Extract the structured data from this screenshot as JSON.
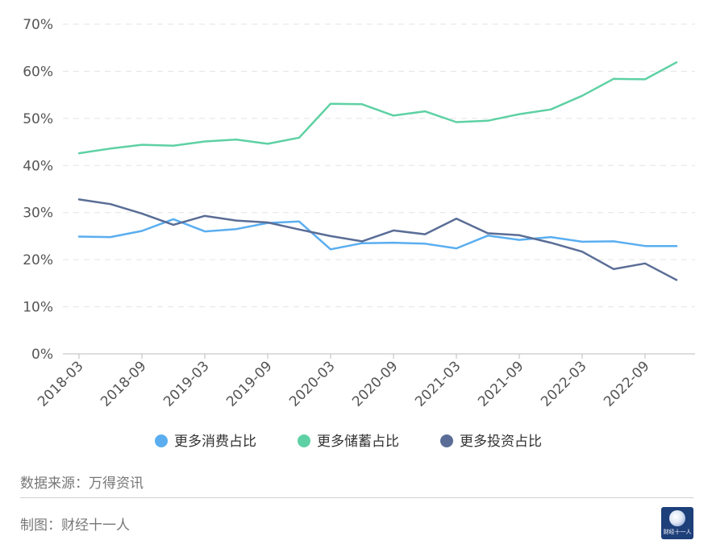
{
  "chart_data": {
    "type": "line",
    "title": "",
    "xlabel": "",
    "ylabel": "",
    "ylim": [
      0,
      70
    ],
    "y_ticks": [
      0,
      10,
      20,
      30,
      40,
      50,
      60,
      70
    ],
    "y_tick_labels": [
      "0%",
      "10%",
      "20%",
      "30%",
      "40%",
      "50%",
      "60%",
      "70%"
    ],
    "x": [
      "2018-03",
      "2018-06",
      "2018-09",
      "2018-12",
      "2019-03",
      "2019-06",
      "2019-09",
      "2019-12",
      "2020-03",
      "2020-06",
      "2020-09",
      "2020-12",
      "2021-03",
      "2021-06",
      "2021-09",
      "2021-12",
      "2022-03",
      "2022-06",
      "2022-09",
      "2022-12"
    ],
    "x_tick_labels": [
      "2018-03",
      "2018-09",
      "2019-03",
      "2019-09",
      "2020-03",
      "2020-09",
      "2021-03",
      "2021-09",
      "2022-03",
      "2022-09"
    ],
    "grid": true,
    "legend_position": "bottom",
    "series": [
      {
        "name": "更多消费占比",
        "color": "#5aaef0",
        "values": [
          24.9,
          24.8,
          26.1,
          28.6,
          26.0,
          26.5,
          27.8,
          28.1,
          22.2,
          23.5,
          23.6,
          23.4,
          22.4,
          25.1,
          24.2,
          24.8,
          23.8,
          23.9,
          22.9,
          22.9
        ]
      },
      {
        "name": "更多储蓄占比",
        "color": "#5ed1a4",
        "values": [
          42.6,
          43.6,
          44.4,
          44.2,
          45.1,
          45.5,
          44.6,
          45.9,
          53.1,
          53.0,
          50.6,
          51.5,
          49.2,
          49.5,
          50.9,
          51.9,
          54.8,
          58.4,
          58.3,
          61.9
        ]
      },
      {
        "name": "更多投资占比",
        "color": "#5a6d96",
        "values": [
          32.8,
          31.8,
          29.8,
          27.4,
          29.3,
          28.3,
          27.9,
          26.4,
          25.0,
          23.9,
          26.2,
          25.4,
          28.7,
          25.6,
          25.2,
          23.6,
          21.7,
          18.0,
          19.2,
          15.7
        ]
      }
    ]
  },
  "footer": {
    "source": "数据来源：万得资讯",
    "author": "制图：财经十一人",
    "logo_text": "财经十一人"
  }
}
